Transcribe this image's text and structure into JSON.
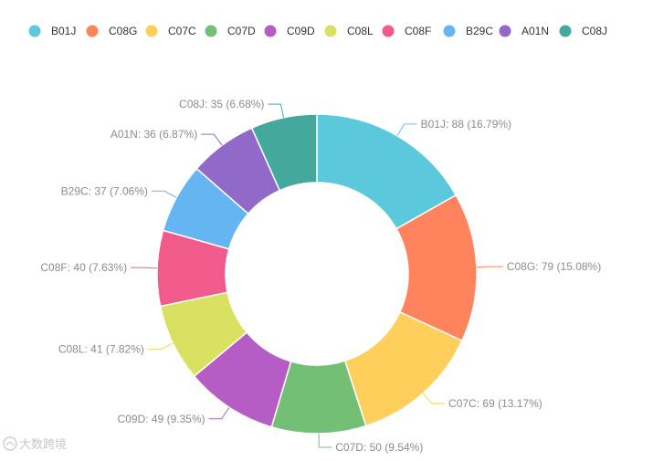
{
  "chart_data": {
    "type": "pie",
    "variant": "donut",
    "title": "",
    "legend_position": "top",
    "slices": [
      {
        "name": "B01J",
        "value": 88,
        "percent": "16.79%",
        "color": "#5bc8db",
        "label": "B01J: 88 (16.79%)"
      },
      {
        "name": "C08G",
        "value": 79,
        "percent": "15.08%",
        "color": "#ff845e",
        "label": "C08G: 79 (15.08%)"
      },
      {
        "name": "C07C",
        "value": 69,
        "percent": "13.17%",
        "color": "#ffcf5b",
        "label": "C07C: 69 (13.17%)"
      },
      {
        "name": "C07D",
        "value": 50,
        "percent": "9.54%",
        "color": "#74bf76",
        "label": "C07D: 50 (9.54%)"
      },
      {
        "name": "C09D",
        "value": 49,
        "percent": "9.35%",
        "color": "#b55cc5",
        "label": "C09D: 49 (9.35%)"
      },
      {
        "name": "C08L",
        "value": 41,
        "percent": "7.82%",
        "color": "#d9e260",
        "label": "C08L: 41 (7.82%)"
      },
      {
        "name": "C08F",
        "value": 40,
        "percent": "7.63%",
        "color": "#f05b8c",
        "label": "C08F: 40 (7.63%)"
      },
      {
        "name": "B29C",
        "value": 37,
        "percent": "7.06%",
        "color": "#65b5f2",
        "label": "B29C: 37 (7.06%)"
      },
      {
        "name": "A01N",
        "value": 36,
        "percent": "6.87%",
        "color": "#9169c9",
        "label": "A01N: 36 (6.87%)"
      },
      {
        "name": "C08J",
        "value": 35,
        "percent": "6.68%",
        "color": "#44a99c",
        "label": "C08J: 35 (6.68%)"
      }
    ]
  },
  "watermark": {
    "text": "大数跨境"
  }
}
